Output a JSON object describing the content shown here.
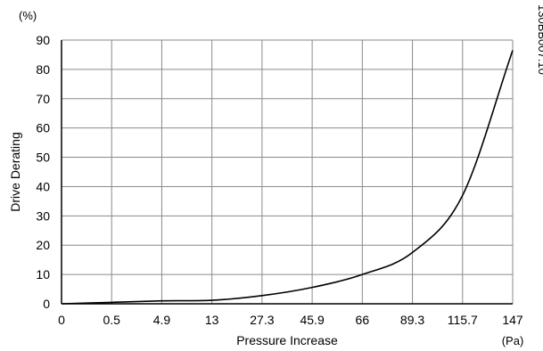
{
  "chart_data": {
    "type": "line",
    "title": "",
    "xlabel": "Pressure Increase",
    "ylabel": "Drive Derating",
    "x_unit": "(Pa)",
    "y_unit": "(%)",
    "figure_id": "130BB007.10",
    "x_scale": "categorical, evenly spaced ticks",
    "x_ticks": [
      "0",
      "0.5",
      "4.9",
      "13",
      "27.3",
      "45.9",
      "66",
      "89.3",
      "115.7",
      "147"
    ],
    "y_ticks": [
      "0",
      "10",
      "20",
      "30",
      "40",
      "50",
      "60",
      "70",
      "80",
      "90"
    ],
    "ylim": [
      0,
      90
    ],
    "grid": true,
    "legend": "none",
    "line_color": "#000000",
    "grid_color": "#8a8a8a",
    "series": [
      {
        "x": [
          "0",
          "0.5",
          "4.9",
          "13",
          "27.3",
          "45.9",
          "66",
          "89.3",
          "115.7",
          "147"
        ],
        "values": [
          0,
          0.5,
          1.0,
          1.2,
          2.8,
          5.6,
          10.0,
          17.5,
          37.0,
          86.5
        ]
      }
    ]
  }
}
